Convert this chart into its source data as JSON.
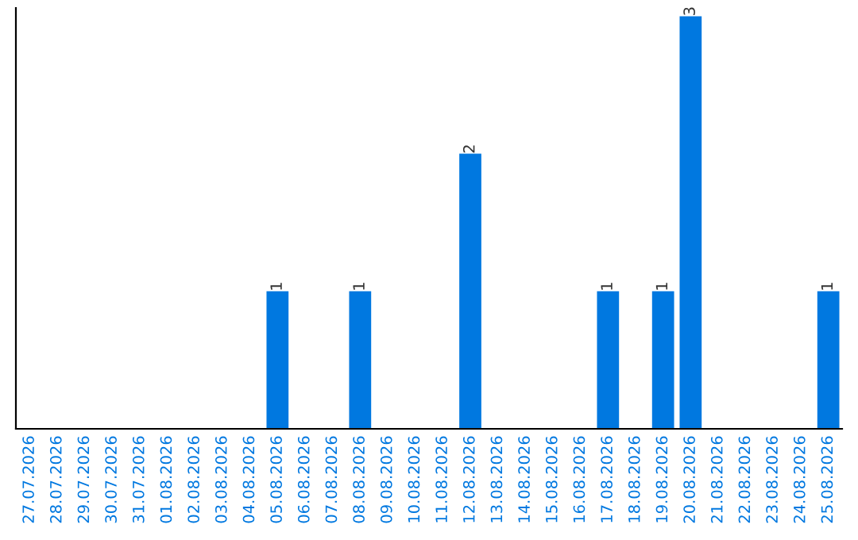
{
  "chart_data": {
    "type": "bar",
    "categories": [
      "27.07.2026",
      "28.07.2026",
      "29.07.2026",
      "30.07.2026",
      "31.07.2026",
      "01.08.2026",
      "02.08.2026",
      "03.08.2026",
      "04.08.2026",
      "05.08.2026",
      "06.08.2026",
      "07.08.2026",
      "08.08.2026",
      "09.08.2026",
      "10.08.2026",
      "11.08.2026",
      "12.08.2026",
      "13.08.2026",
      "14.08.2026",
      "15.08.2026",
      "16.08.2026",
      "17.08.2026",
      "18.08.2026",
      "19.08.2026",
      "20.08.2026",
      "21.08.2026",
      "22.08.2026",
      "23.08.2026",
      "24.08.2026",
      "25.08.2026"
    ],
    "values": [
      0,
      0,
      0,
      0,
      0,
      0,
      0,
      0,
      0,
      1,
      0,
      0,
      1,
      0,
      0,
      0,
      2,
      0,
      0,
      0,
      0,
      1,
      0,
      1,
      3,
      0,
      0,
      0,
      0,
      1
    ],
    "value_labels": [
      null,
      null,
      null,
      null,
      null,
      null,
      null,
      null,
      null,
      "1",
      null,
      null,
      "1",
      null,
      null,
      null,
      "2",
      null,
      null,
      null,
      null,
      "1",
      null,
      "1",
      "3",
      null,
      null,
      null,
      null,
      "1"
    ],
    "color": "#0078e0",
    "grid": false,
    "legend": false
  }
}
